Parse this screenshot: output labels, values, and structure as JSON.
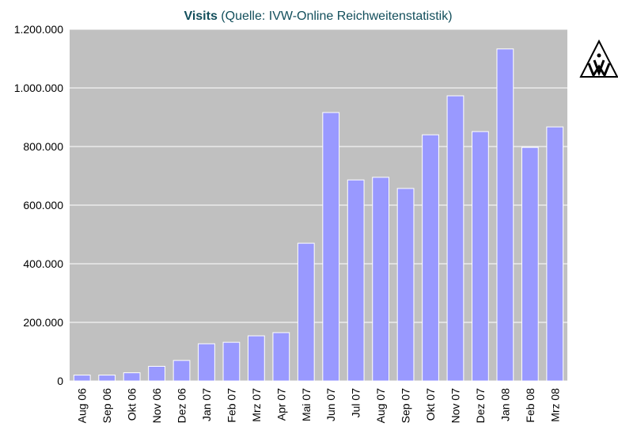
{
  "chart_data": {
    "type": "bar",
    "title": "Visits",
    "subtitle": "(Quelle: IVW-Online Reichweitenstatistik)",
    "categories": [
      "Aug 06",
      "Sep 06",
      "Okt 06",
      "Nov 06",
      "Dez 06",
      "Jan 07",
      "Feb 07",
      "Mrz 07",
      "Apr 07",
      "Mai 07",
      "Jun 07",
      "Jul 07",
      "Aug 07",
      "Sep 07",
      "Okt 07",
      "Nov 07",
      "Dez 07",
      "Jan 08",
      "Feb 08",
      "Mrz 08"
    ],
    "values": [
      20000,
      20000,
      28000,
      50000,
      70000,
      127000,
      132000,
      154000,
      165000,
      470000,
      916000,
      686000,
      695000,
      657000,
      840000,
      973000,
      851000,
      1133000,
      797000,
      867000
    ],
    "color": "#9999ff",
    "ylim": [
      0,
      1200000
    ],
    "yticks": [
      0,
      {
        "value": 200000,
        "label": "200.000"
      },
      {
        "value": 400000,
        "label": "400.000"
      },
      {
        "value": 600000,
        "label": "600.000"
      },
      {
        "value": 800000,
        "label": "800.000"
      },
      {
        "value": 1000000,
        "label": "1.000.000"
      },
      {
        "value": 1200000,
        "label": "1.200.000"
      }
    ],
    "grid": true
  }
}
